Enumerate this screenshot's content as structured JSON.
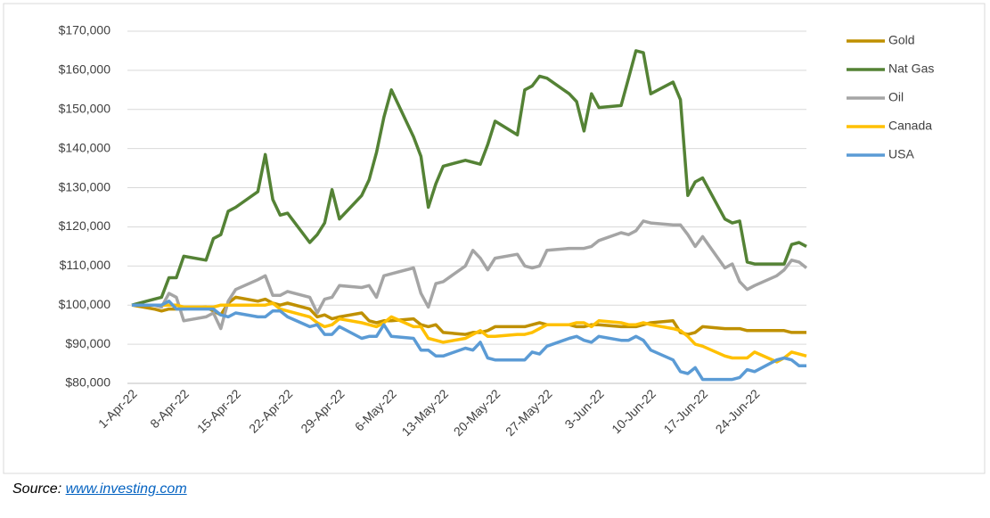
{
  "chart_data": {
    "type": "line",
    "x": [
      "1-Apr-22",
      "4-Apr-22",
      "5-Apr-22",
      "6-Apr-22",
      "7-Apr-22",
      "8-Apr-22",
      "11-Apr-22",
      "12-Apr-22",
      "13-Apr-22",
      "14-Apr-22",
      "15-Apr-22",
      "18-Apr-22",
      "19-Apr-22",
      "20-Apr-22",
      "21-Apr-22",
      "22-Apr-22",
      "25-Apr-22",
      "26-Apr-22",
      "27-Apr-22",
      "28-Apr-22",
      "29-Apr-22",
      "2-May-22",
      "3-May-22",
      "4-May-22",
      "5-May-22",
      "6-May-22",
      "9-May-22",
      "10-May-22",
      "11-May-22",
      "12-May-22",
      "13-May-22",
      "16-May-22",
      "17-May-22",
      "18-May-22",
      "19-May-22",
      "20-May-22",
      "23-May-22",
      "24-May-22",
      "25-May-22",
      "26-May-22",
      "27-May-22",
      "30-May-22",
      "31-May-22",
      "1-Jun-22",
      "2-Jun-22",
      "3-Jun-22",
      "6-Jun-22",
      "7-Jun-22",
      "8-Jun-22",
      "9-Jun-22",
      "10-Jun-22",
      "13-Jun-22",
      "14-Jun-22",
      "15-Jun-22",
      "16-Jun-22",
      "17-Jun-22",
      "20-Jun-22",
      "21-Jun-22",
      "22-Jun-22",
      "23-Jun-22",
      "24-Jun-22",
      "27-Jun-22",
      "28-Jun-22",
      "29-Jun-22",
      "30-Jun-22",
      "1-Jul-22"
    ],
    "series": [
      {
        "name": "Gold",
        "color": "#bf9000",
        "values": [
          100000,
          99000,
          98500,
          99000,
          99000,
          99000,
          99500,
          98500,
          97500,
          100500,
          102000,
          101000,
          101500,
          100500,
          100000,
          100500,
          99000,
          97000,
          97500,
          96500,
          97000,
          98000,
          96000,
          95500,
          96000,
          96000,
          96500,
          95000,
          94500,
          95000,
          93000,
          92500,
          93000,
          93000,
          93500,
          94500,
          94500,
          94500,
          95000,
          95500,
          95000,
          95000,
          94500,
          94500,
          95000,
          95000,
          94500,
          94500,
          94500,
          95000,
          95500,
          96000,
          93000,
          92500,
          93000,
          94500,
          94000,
          94000,
          94000,
          93500,
          93500,
          93500,
          93500,
          93000,
          93000,
          93000
        ]
      },
      {
        "name": "Nat Gas",
        "color": "#548235",
        "values": [
          100000,
          101500,
          102000,
          107000,
          107000,
          112500,
          111500,
          117000,
          118000,
          124000,
          125000,
          129000,
          138500,
          127000,
          123000,
          123500,
          116000,
          118000,
          121000,
          129500,
          122000,
          128000,
          132000,
          139000,
          148000,
          155000,
          143000,
          138000,
          125000,
          131000,
          135500,
          137000,
          136500,
          136000,
          141000,
          147000,
          143500,
          155000,
          156000,
          158500,
          158000,
          154000,
          152000,
          144500,
          154000,
          150500,
          151000,
          158000,
          165000,
          164500,
          154000,
          157000,
          152500,
          128000,
          131500,
          132500,
          122000,
          121000,
          121500,
          111000,
          110500,
          110500,
          110500,
          115500,
          116000,
          115000
        ]
      },
      {
        "name": "Oil",
        "color": "#a5a5a5",
        "values": [
          100000,
          100000,
          99500,
          103000,
          102000,
          96000,
          97000,
          98000,
          94000,
          101000,
          104000,
          106500,
          107500,
          102500,
          102500,
          103500,
          102000,
          98000,
          101500,
          102000,
          105000,
          104500,
          105000,
          102000,
          107500,
          108000,
          109500,
          103000,
          99500,
          105500,
          106000,
          110000,
          114000,
          112000,
          109000,
          112000,
          113000,
          110000,
          109500,
          110000,
          114000,
          114500,
          114500,
          114500,
          115000,
          116500,
          118500,
          118000,
          119000,
          121500,
          121000,
          120500,
          120500,
          118000,
          115000,
          117500,
          109500,
          110500,
          106000,
          104000,
          105000,
          107500,
          109000,
          111500,
          111000,
          109500
        ]
      },
      {
        "name": "Canada",
        "color": "#ffc000",
        "values": [
          100000,
          100000,
          100000,
          100000,
          100000,
          99500,
          99500,
          99500,
          100000,
          100000,
          100000,
          100000,
          100000,
          100500,
          99000,
          98500,
          97000,
          95500,
          94500,
          95000,
          96500,
          95500,
          95000,
          94500,
          95500,
          97000,
          94500,
          94500,
          91500,
          91000,
          90500,
          91500,
          92500,
          93500,
          92000,
          92000,
          92500,
          92500,
          93000,
          94000,
          95000,
          95000,
          95500,
          95500,
          94500,
          96000,
          95500,
          95000,
          95000,
          95500,
          95000,
          94000,
          93500,
          92000,
          90000,
          89500,
          87000,
          86500,
          86500,
          86500,
          88000,
          85500,
          86500,
          88000,
          87500,
          87000
        ]
      },
      {
        "name": "USA",
        "color": "#5b9bd5",
        "values": [
          100000,
          100000,
          100000,
          101000,
          99000,
          99000,
          99000,
          99000,
          97500,
          97000,
          98000,
          97000,
          97000,
          98500,
          98500,
          97000,
          94500,
          95000,
          92500,
          92500,
          94500,
          91500,
          92000,
          92000,
          95000,
          92000,
          91500,
          88500,
          88500,
          87000,
          87000,
          89000,
          88500,
          90500,
          86500,
          86000,
          86000,
          86000,
          88000,
          87500,
          89500,
          91500,
          92000,
          91000,
          90500,
          92000,
          91000,
          91000,
          92000,
          91000,
          88500,
          86000,
          83000,
          82500,
          84000,
          81000,
          81000,
          81000,
          81500,
          83500,
          83000,
          86000,
          86500,
          86000,
          84500,
          84500
        ]
      }
    ],
    "xlim": [
      "1-Apr-22",
      "1-Jul-22"
    ],
    "xticks": [
      "1-Apr-22",
      "8-Apr-22",
      "15-Apr-22",
      "22-Apr-22",
      "29-Apr-22",
      "6-May-22",
      "13-May-22",
      "20-May-22",
      "27-May-22",
      "3-Jun-22",
      "10-Jun-22",
      "17-Jun-22",
      "24-Jun-22"
    ],
    "ylim": [
      80000,
      170000
    ],
    "yticks": [
      {
        "value": 80000,
        "label": "$80,000"
      },
      {
        "value": 90000,
        "label": "$90,000"
      },
      {
        "value": 100000,
        "label": "$100,000"
      },
      {
        "value": 110000,
        "label": "$110,000"
      },
      {
        "value": 120000,
        "label": "$120,000"
      },
      {
        "value": 130000,
        "label": "$130,000"
      },
      {
        "value": 140000,
        "label": "$140,000"
      },
      {
        "value": 150000,
        "label": "$150,000"
      },
      {
        "value": 160000,
        "label": "$160,000"
      },
      {
        "value": 170000,
        "label": "$170,000"
      }
    ],
    "grid": true,
    "legend": "right"
  },
  "source": {
    "label": "Source:",
    "link": "www.investing.com"
  }
}
